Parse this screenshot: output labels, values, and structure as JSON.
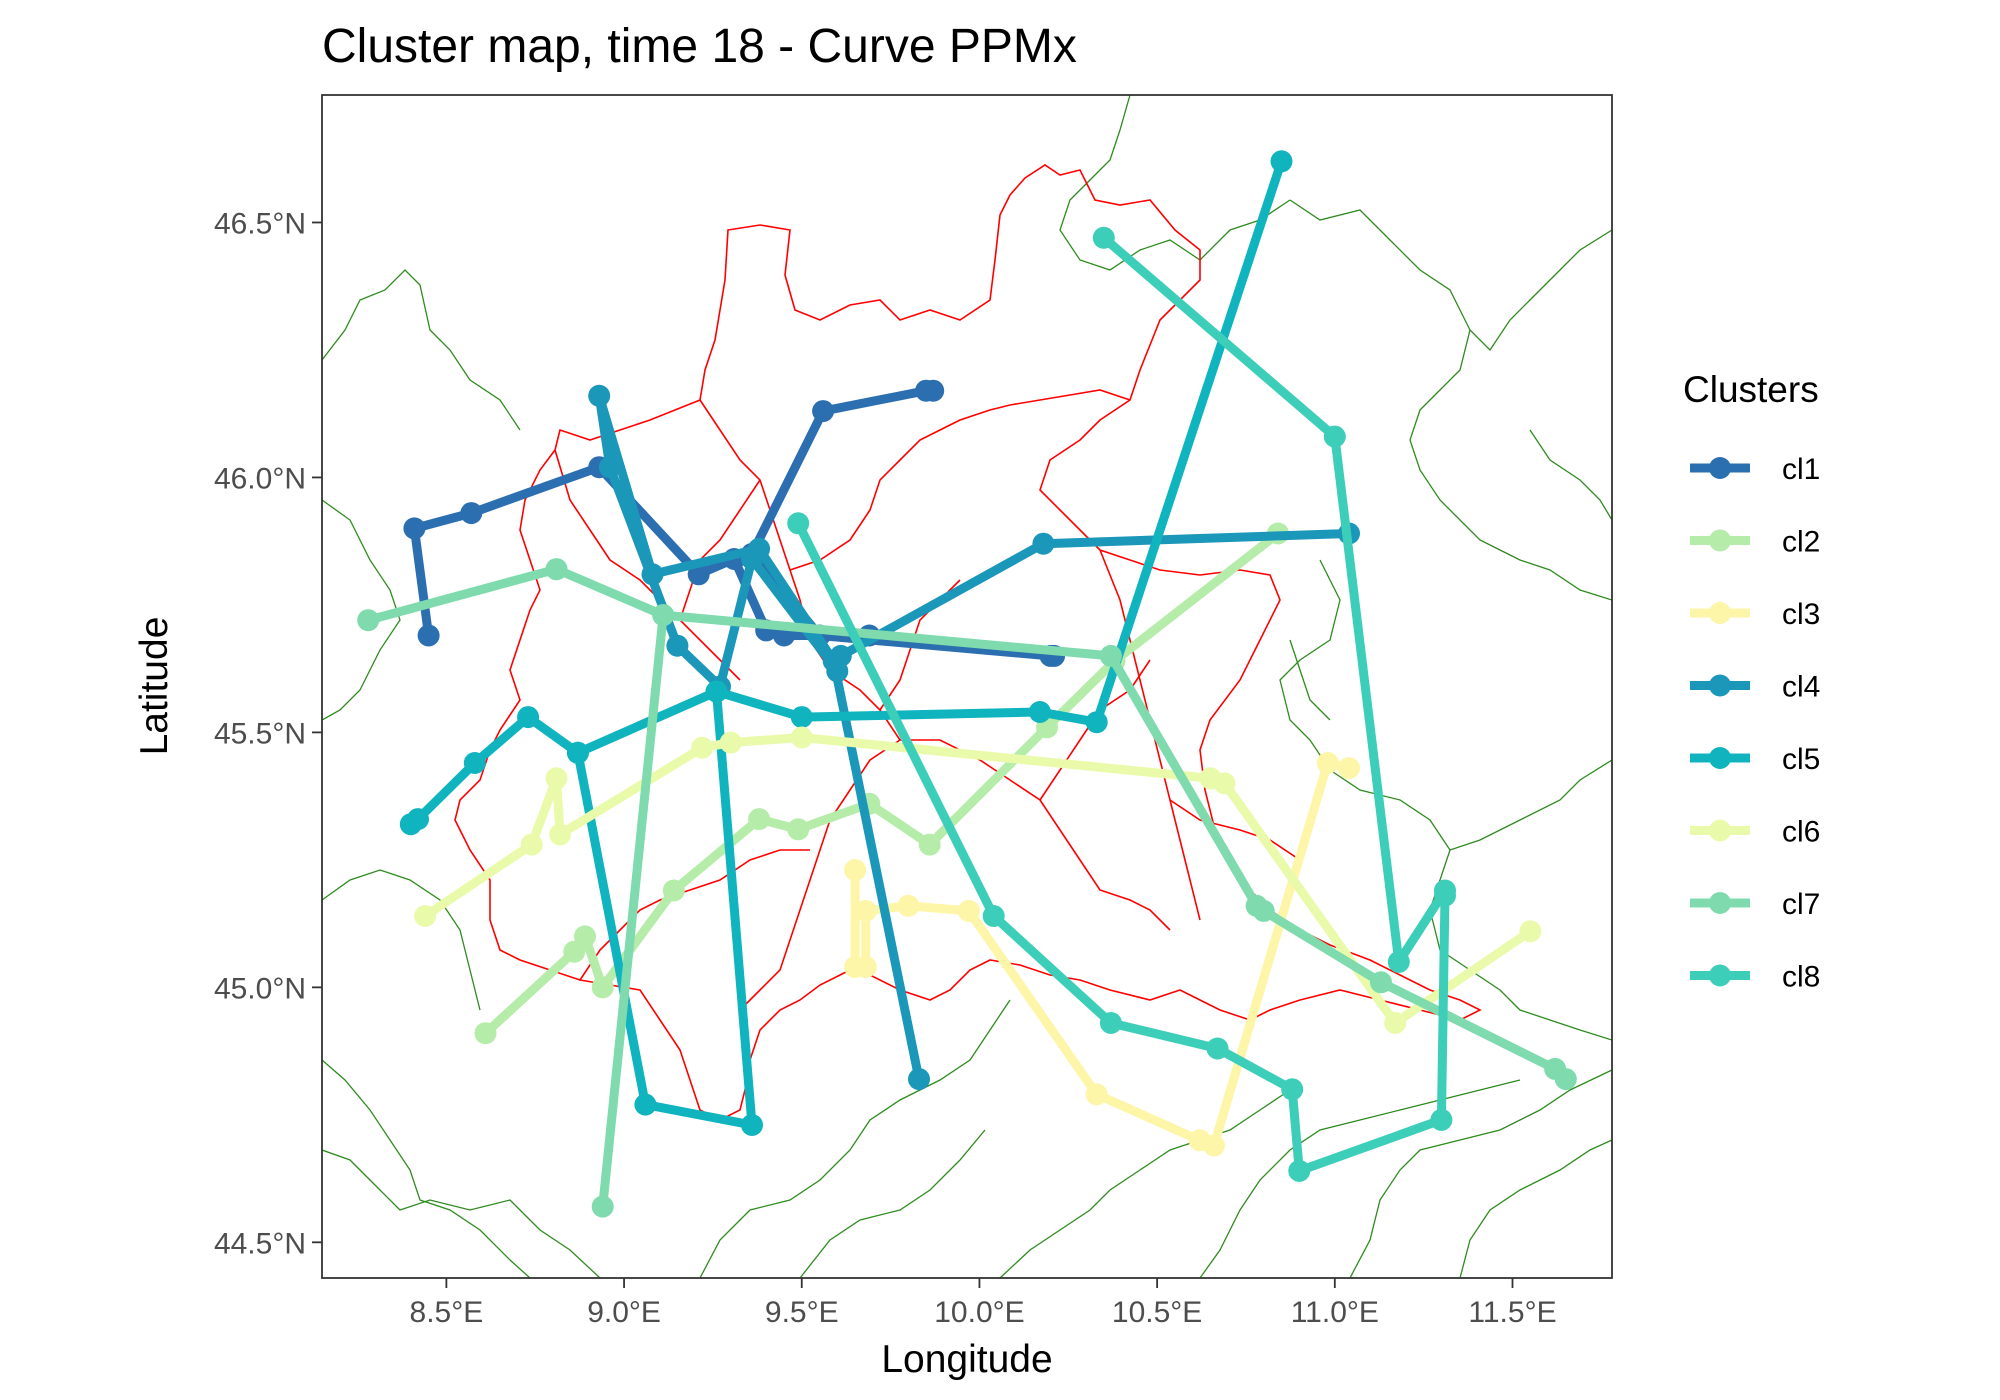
{
  "chart_data": {
    "type": "line",
    "title": "Cluster map, time 18 - Curve PPMx",
    "xlabel": "Longitude",
    "ylabel": "Latitude",
    "xlim": [
      8.15,
      11.78
    ],
    "ylim": [
      44.43,
      46.75
    ],
    "x_ticks": [
      {
        "value": 8.5,
        "label": "8.5°E"
      },
      {
        "value": 9.0,
        "label": "9.0°E"
      },
      {
        "value": 9.5,
        "label": "9.5°E"
      },
      {
        "value": 10.0,
        "label": "10.0°E"
      },
      {
        "value": 10.5,
        "label": "10.5°E"
      },
      {
        "value": 11.0,
        "label": "11.0°E"
      },
      {
        "value": 11.5,
        "label": "11.5°E"
      }
    ],
    "y_ticks": [
      {
        "value": 44.5,
        "label": "44.5°N"
      },
      {
        "value": 45.0,
        "label": "45.0°N"
      },
      {
        "value": 45.5,
        "label": "45.5°N"
      },
      {
        "value": 46.0,
        "label": "46.0°N"
      },
      {
        "value": 46.5,
        "label": "46.5°N"
      }
    ],
    "grid": false,
    "legend": {
      "title": "Clusters",
      "placement": "right"
    },
    "series": [
      {
        "name": "cl1",
        "color": "#2c6fb0",
        "points": [
          [
            8.45,
            45.69
          ],
          [
            8.41,
            45.9
          ],
          [
            8.57,
            45.93
          ],
          [
            8.93,
            46.02
          ],
          [
            9.21,
            45.81
          ],
          [
            9.31,
            45.84
          ],
          [
            9.4,
            45.7
          ],
          [
            9.45,
            45.69
          ],
          [
            9.69,
            45.69
          ],
          [
            10.21,
            45.65
          ],
          [
            10.2,
            45.65
          ],
          [
            9.55,
            45.69
          ],
          [
            9.36,
            45.85
          ],
          [
            9.56,
            46.13
          ],
          [
            9.85,
            46.17
          ],
          [
            9.87,
            46.17
          ]
        ]
      },
      {
        "name": "cl2",
        "color": "#b5eca9",
        "points": [
          [
            8.61,
            44.91
          ],
          [
            8.86,
            45.07
          ],
          [
            8.89,
            45.1
          ],
          [
            8.94,
            45.0
          ],
          [
            9.14,
            45.19
          ],
          [
            9.38,
            45.33
          ],
          [
            9.49,
            45.31
          ],
          [
            9.69,
            45.36
          ],
          [
            9.86,
            45.28
          ],
          [
            10.19,
            45.51
          ],
          [
            10.38,
            45.64
          ],
          [
            10.84,
            45.89
          ]
        ]
      },
      {
        "name": "cl3",
        "color": "#fdf5a7",
        "points": [
          [
            11.04,
            45.43
          ],
          [
            10.98,
            45.44
          ],
          [
            10.66,
            44.69
          ],
          [
            10.62,
            44.7
          ],
          [
            10.33,
            44.79
          ],
          [
            9.97,
            45.15
          ],
          [
            9.8,
            45.16
          ],
          [
            9.68,
            45.15
          ],
          [
            9.68,
            45.04
          ],
          [
            9.65,
            45.04
          ],
          [
            9.65,
            45.23
          ]
        ]
      },
      {
        "name": "cl4",
        "color": "#1b97ba",
        "points": [
          [
            9.83,
            44.82
          ],
          [
            9.59,
            45.64
          ],
          [
            9.38,
            45.86
          ],
          [
            9.08,
            45.81
          ],
          [
            8.93,
            46.16
          ],
          [
            8.96,
            46.02
          ],
          [
            9.15,
            45.67
          ],
          [
            9.27,
            45.59
          ],
          [
            9.36,
            45.84
          ],
          [
            9.6,
            45.62
          ],
          [
            9.61,
            45.65
          ],
          [
            10.18,
            45.87
          ],
          [
            11.04,
            45.89
          ]
        ]
      },
      {
        "name": "cl5",
        "color": "#10b4be",
        "points": [
          [
            8.4,
            45.32
          ],
          [
            8.42,
            45.33
          ],
          [
            8.58,
            45.44
          ],
          [
            8.73,
            45.53
          ],
          [
            8.87,
            45.46
          ],
          [
            9.06,
            44.77
          ],
          [
            9.36,
            44.73
          ],
          [
            9.26,
            45.58
          ],
          [
            8.87,
            45.46
          ],
          [
            9.26,
            45.58
          ],
          [
            9.5,
            45.53
          ],
          [
            10.17,
            45.54
          ],
          [
            10.33,
            45.52
          ],
          [
            10.85,
            46.62
          ]
        ]
      },
      {
        "name": "cl6",
        "color": "#e9fbaa",
        "points": [
          [
            8.44,
            45.14
          ],
          [
            8.74,
            45.28
          ],
          [
            8.81,
            45.41
          ],
          [
            8.82,
            45.3
          ],
          [
            9.22,
            45.47
          ],
          [
            9.3,
            45.48
          ],
          [
            9.5,
            45.49
          ],
          [
            10.65,
            45.41
          ],
          [
            10.69,
            45.4
          ],
          [
            11.17,
            44.93
          ],
          [
            11.55,
            45.11
          ]
        ]
      },
      {
        "name": "cl7",
        "color": "#7fdbae",
        "points": [
          [
            8.94,
            44.57
          ],
          [
            9.11,
            45.73
          ],
          [
            8.81,
            45.82
          ],
          [
            8.28,
            45.72
          ],
          [
            8.81,
            45.82
          ],
          [
            9.11,
            45.73
          ],
          [
            10.37,
            45.65
          ],
          [
            10.78,
            45.16
          ],
          [
            10.8,
            45.15
          ],
          [
            11.13,
            45.01
          ],
          [
            11.62,
            44.84
          ],
          [
            11.65,
            44.82
          ]
        ]
      },
      {
        "name": "cl8",
        "color": "#3dceb9",
        "points": [
          [
            9.49,
            45.91
          ],
          [
            10.04,
            45.14
          ],
          [
            10.37,
            44.93
          ],
          [
            10.67,
            44.88
          ],
          [
            10.88,
            44.8
          ],
          [
            10.9,
            44.64
          ],
          [
            11.3,
            44.74
          ],
          [
            11.31,
            45.18
          ],
          [
            11.31,
            45.19
          ],
          [
            11.18,
            45.05
          ],
          [
            11.0,
            46.08
          ],
          [
            10.35,
            46.47
          ]
        ]
      }
    ]
  }
}
